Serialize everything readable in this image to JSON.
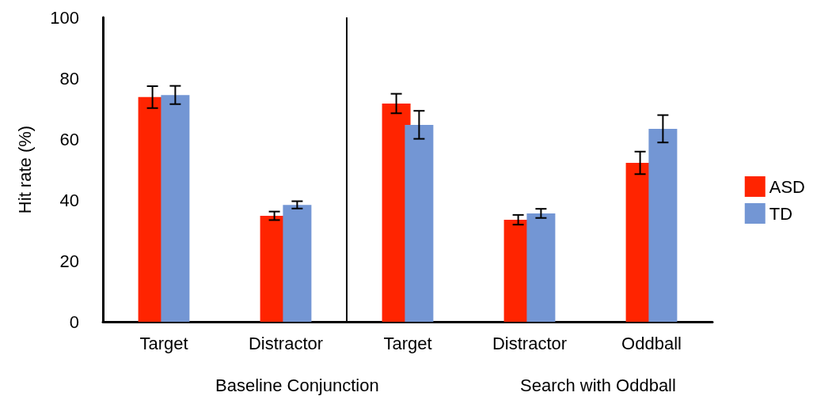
{
  "chart_data": {
    "type": "bar",
    "ylabel": "Hit rate (%)",
    "categories": [
      "Target",
      "Distractor",
      "Target",
      "Distractor",
      "Oddball"
    ],
    "series": [
      {
        "name": "ASD",
        "color": "#ff2400",
        "values": [
          73.8,
          34.8,
          71.7,
          33.5,
          52.2
        ],
        "errors": [
          3.6,
          1.4,
          3.2,
          1.6,
          3.7
        ]
      },
      {
        "name": "TD",
        "color": "#7396d4",
        "values": [
          74.5,
          38.4,
          64.7,
          35.6,
          63.4
        ],
        "errors": [
          3,
          1.2,
          4.6,
          1.5,
          4.5
        ]
      }
    ],
    "annotations": [
      "Baseline Conjunction",
      "Search with Oddball"
    ],
    "ylim": [
      0,
      100
    ],
    "yticks": [
      0,
      20,
      40,
      60,
      80,
      100
    ],
    "grid": false,
    "legend": "right"
  }
}
